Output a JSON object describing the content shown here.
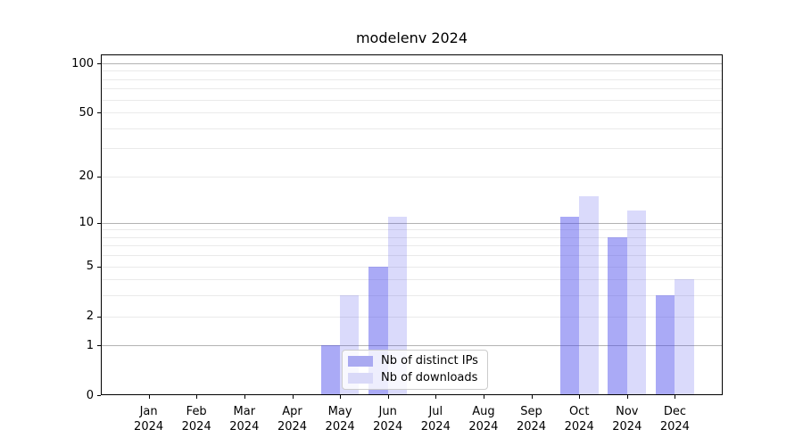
{
  "figure": {
    "title": "modelenv 2024"
  },
  "chart_data": {
    "type": "bar",
    "title": "modelenv 2024",
    "categories": [
      "Jan 2024",
      "Feb 2024",
      "Mar 2024",
      "Apr 2024",
      "May 2024",
      "Jun 2024",
      "Jul 2024",
      "Aug 2024",
      "Sep 2024",
      "Oct 2024",
      "Nov 2024",
      "Dec 2024"
    ],
    "category_months": [
      "Jan",
      "Feb",
      "Mar",
      "Apr",
      "May",
      "Jun",
      "Jul",
      "Aug",
      "Sep",
      "Oct",
      "Nov",
      "Dec"
    ],
    "category_year": "2024",
    "series": [
      {
        "name": "Nb of distinct IPs",
        "values": [
          0,
          0,
          0,
          0,
          1,
          5,
          0,
          0,
          0,
          11,
          8,
          3
        ],
        "bar_color": "rgba(70,70,235,0.46)",
        "swatch_color": "#a9a9f1"
      },
      {
        "name": "Nb of downloads",
        "values": [
          0,
          0,
          0,
          0,
          3,
          11,
          0,
          0,
          0,
          15,
          12,
          4
        ],
        "bar_color": "rgba(70,70,235,0.20)",
        "swatch_color": "#d9d9f8"
      }
    ],
    "y_scale": "log1p",
    "y_tick_labels": [
      0,
      1,
      2,
      5,
      10,
      20,
      50,
      100
    ],
    "y_major_gridlines": [
      1,
      10,
      100
    ],
    "y_minor_gridlines": [
      2,
      3,
      4,
      5,
      6,
      7,
      8,
      9,
      20,
      30,
      40,
      50,
      60,
      70,
      80,
      90
    ],
    "ylim": [
      0,
      113.4
    ],
    "xlim": [
      -1,
      12
    ],
    "bar_width": 0.4,
    "grid": true,
    "legend_position": "lower center",
    "colors": {
      "major_grid": "#b3b3b3",
      "minor_grid": "#eaeaea",
      "spine": "#000000",
      "text": "#000000",
      "background": "#ffffff"
    }
  }
}
